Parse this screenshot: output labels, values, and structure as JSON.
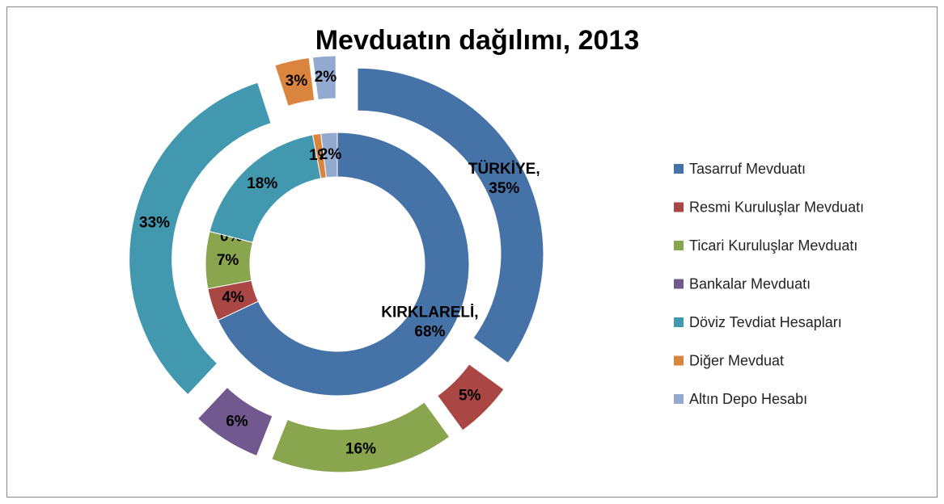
{
  "chart_data": {
    "type": "doughnut",
    "title": "Mevduatın dağılımı, 2013",
    "categories": [
      "Tasarruf Mevduatı",
      "Resmi Kuruluşlar Mevduatı",
      "Ticari Kuruluşlar Mevduatı",
      "Bankalar Mevduatı",
      "Döviz Tevdiat Hesapları",
      "Diğer Mevduat",
      "Altın Depo Hesabı"
    ],
    "colors": [
      "#4572a7",
      "#aa4643",
      "#89a54e",
      "#71588f",
      "#4198af",
      "#db843d",
      "#93a9cf"
    ],
    "series": [
      {
        "name": "KIRKLARELİ,",
        "values": [
          68,
          4,
          7,
          0,
          18,
          1,
          2
        ],
        "value_labels": [
          "68%",
          "4%",
          "7%",
          "0%",
          "18%",
          "1%",
          "2%"
        ]
      },
      {
        "name": "TÜRKİYE,",
        "values": [
          35,
          5,
          16,
          6,
          33,
          3,
          2
        ],
        "value_labels": [
          "35%",
          "5%",
          "16%",
          "6%",
          "33%",
          "3%",
          "2%"
        ],
        "exploded": true
      }
    ],
    "legend": "right"
  }
}
